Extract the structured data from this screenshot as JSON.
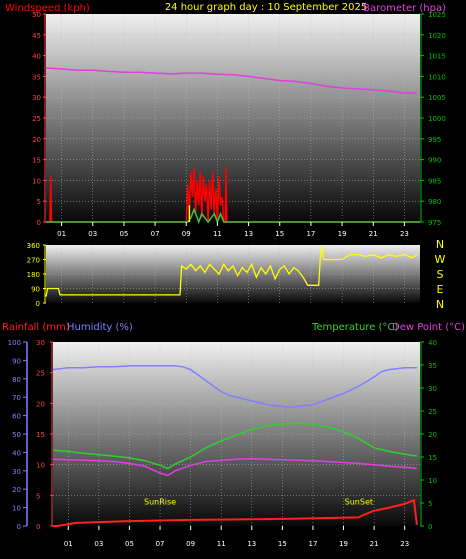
{
  "header": {
    "left_title": "Windspeed (kph)",
    "center_title": "24 hour graph day : 10 September 2025",
    "right_title": "Barometer (hpa)"
  },
  "bottom_header": {
    "rain_label": "Rainfall (mm)",
    "humidity_label": "Humidity (%)",
    "temperature_label": "Temperature (°C)",
    "dewpoint_label": "Dew Point (°C)"
  },
  "colors": {
    "wind": "#ff0000",
    "gust": "#40c040",
    "gust_peak": "#ffff00",
    "barometer": "#e040e0",
    "direction": "#ffff00",
    "rain": "#ff2020",
    "humidity": "#8080ff",
    "temperature": "#30d030",
    "dewpoint": "#e040e0",
    "axis_right_green": "#00c000",
    "compass": "#ffff00"
  },
  "chart_data": [
    {
      "type": "line",
      "title": "24 hour graph day : 10 September 2025",
      "xlabel": "",
      "x_ticks": [
        "01",
        "03",
        "05",
        "07",
        "09",
        "11",
        "13",
        "15",
        "17",
        "19",
        "21",
        "23"
      ],
      "xlim": [
        0,
        24
      ],
      "ylabel": "Windspeed (kph)",
      "ylim": [
        0,
        50
      ],
      "y_ticks": [
        0,
        5,
        10,
        15,
        20,
        25,
        30,
        35,
        40,
        45,
        50
      ],
      "y2label": "Barometer (hpa)",
      "y2lim": [
        975,
        1025
      ],
      "y2_ticks": [
        975,
        980,
        985,
        990,
        995,
        1000,
        1005,
        1010,
        1015,
        1020,
        1025
      ],
      "series": [
        {
          "name": "Barometer (hpa)",
          "axis": "right",
          "x": [
            0,
            1,
            2,
            3,
            4,
            5,
            6,
            7,
            8,
            9,
            10,
            11,
            12,
            13,
            14,
            15,
            16,
            17,
            18,
            19,
            20,
            21,
            22,
            23,
            23.8
          ],
          "y": [
            1012,
            1011.8,
            1011.5,
            1011.5,
            1011.2,
            1011,
            1011,
            1010.8,
            1010.6,
            1010.8,
            1010.8,
            1010.5,
            1010.4,
            1010,
            1009.5,
            1009,
            1008.8,
            1008.3,
            1007.6,
            1007.2,
            1007,
            1006.8,
            1006.5,
            1006,
            1006
          ]
        },
        {
          "name": "Windspeed (kph)",
          "axis": "left",
          "x": [
            0,
            0.25,
            0.3,
            0.35,
            0.4,
            9.0,
            9.1,
            9.2,
            9.3,
            9.4,
            9.5,
            9.6,
            9.7,
            9.8,
            9.9,
            10.0,
            10.1,
            10.2,
            10.3,
            10.4,
            10.5,
            10.6,
            10.7,
            10.8,
            10.9,
            11.0,
            11.1,
            11.2,
            11.3,
            11.4,
            11.5,
            11.55,
            11.6,
            11.7,
            24
          ],
          "y": [
            0,
            0,
            11,
            0,
            0,
            0,
            9,
            3,
            12,
            6,
            13,
            2,
            10,
            4,
            12,
            1,
            11,
            5,
            9,
            0,
            10,
            3,
            12,
            2,
            8,
            0,
            11,
            4,
            6,
            0,
            0,
            13,
            0,
            0,
            0
          ]
        },
        {
          "name": "Gust",
          "axis": "left",
          "x": [
            0,
            9.1,
            9.3,
            9.5,
            9.7,
            9.8,
            10.0,
            10.2,
            10.4,
            10.6,
            10.8,
            11.0,
            11.2,
            11.4,
            11.6,
            24
          ],
          "y": [
            0,
            0,
            1,
            3,
            1,
            0,
            2,
            1,
            0,
            1,
            2,
            0,
            2,
            0,
            0,
            0
          ]
        }
      ]
    },
    {
      "type": "scatter",
      "title": "",
      "x_ticks": [],
      "xlim": [
        0,
        24
      ],
      "y_ticks": [
        0,
        90,
        180,
        270,
        360
      ],
      "ylim": [
        0,
        360
      ],
      "compass_labels": [
        "N",
        "W",
        "S",
        "E",
        "N"
      ],
      "series": [
        {
          "name": "Wind direction",
          "x": [
            0,
            0.1,
            0.8,
            0.9,
            8.6,
            8.7,
            9.0,
            9.3,
            9.6,
            9.9,
            10.2,
            10.5,
            10.8,
            11.1,
            11.4,
            11.7,
            12.0,
            12.3,
            12.6,
            12.9,
            13.2,
            13.5,
            13.8,
            14.1,
            14.4,
            14.7,
            15.0,
            15.3,
            15.6,
            15.9,
            16.2,
            16.5,
            16.8,
            17.1,
            17.4,
            17.5,
            17.6,
            17.7,
            17.8,
            18.0,
            18.5,
            19.0,
            19.5,
            20.0,
            20.5,
            21.0,
            21.5,
            22.0,
            22.5,
            23.0,
            23.5,
            23.8
          ],
          "y": [
            40,
            90,
            90,
            50,
            50,
            230,
            210,
            240,
            200,
            230,
            190,
            240,
            210,
            180,
            240,
            200,
            230,
            170,
            220,
            190,
            240,
            160,
            220,
            180,
            230,
            150,
            210,
            230,
            180,
            220,
            200,
            160,
            110,
            110,
            110,
            110,
            280,
            350,
            270,
            270,
            270,
            270,
            300,
            300,
            290,
            300,
            280,
            300,
            290,
            300,
            280,
            300
          ]
        }
      ]
    },
    {
      "type": "line",
      "title": "",
      "x_ticks": [
        "01",
        "03",
        "05",
        "07",
        "09",
        "11",
        "13",
        "15",
        "17",
        "19",
        "21",
        "23"
      ],
      "xlim": [
        0,
        24
      ],
      "ylabel": "Rainfall (mm)",
      "ylim": [
        0,
        30
      ],
      "y_ticks": [
        0,
        5,
        10,
        15,
        20,
        25,
        30
      ],
      "humidity_ylim": [
        0,
        100
      ],
      "humidity_ticks": [
        0,
        10,
        20,
        30,
        40,
        50,
        60,
        70,
        80,
        90,
        100
      ],
      "y2label": "Temperature (°C)",
      "y2lim": [
        0,
        40
      ],
      "y2_ticks": [
        0,
        5,
        10,
        15,
        20,
        25,
        30,
        35,
        40
      ],
      "annotations": [
        {
          "text": "SunRise",
          "x": 7
        },
        {
          "text": "SunSet",
          "x": 20
        }
      ],
      "series": [
        {
          "name": "Humidity (%)",
          "axis": "humidity",
          "x": [
            0,
            1,
            2,
            3,
            4,
            5,
            6,
            7,
            8,
            8.5,
            9,
            9.5,
            10,
            10.5,
            11,
            11.5,
            12,
            13,
            14,
            15,
            15.5,
            16,
            17,
            18,
            19,
            20,
            21,
            21.5,
            22,
            23,
            23.8
          ],
          "y": [
            85,
            86,
            86,
            86.5,
            86.5,
            87,
            87,
            87,
            87,
            86.5,
            85,
            82,
            79,
            76,
            73,
            71,
            70,
            68,
            66,
            65,
            64.5,
            65,
            66,
            69,
            72,
            76,
            81,
            84,
            85,
            86,
            86
          ]
        },
        {
          "name": "Temperature (°C)",
          "axis": "right",
          "x": [
            0,
            1,
            2,
            3,
            4,
            5,
            6,
            7,
            7.5,
            8,
            9,
            10,
            11,
            12,
            13,
            14,
            15,
            16,
            17,
            18,
            19,
            20,
            21,
            22,
            23,
            23.8
          ],
          "y": [
            16.5,
            16.2,
            15.8,
            15.5,
            15.2,
            14.8,
            14.2,
            13.2,
            12.5,
            13.5,
            15,
            17,
            18.5,
            19.8,
            21,
            21.8,
            22.2,
            22.3,
            22.1,
            21.5,
            20.5,
            19,
            17,
            16.2,
            15.6,
            15.2
          ]
        },
        {
          "name": "Dew Point (°C)",
          "axis": "right",
          "x": [
            0,
            1,
            2,
            3,
            4,
            5,
            6,
            7,
            7.5,
            8,
            9,
            10,
            11,
            12,
            13,
            14,
            15,
            16,
            17,
            18,
            19,
            20,
            21,
            22,
            23,
            23.8
          ],
          "y": [
            14.5,
            14.4,
            14.3,
            14.2,
            14,
            13.6,
            13,
            11.5,
            11,
            12,
            13.2,
            14,
            14.3,
            14.5,
            14.6,
            14.5,
            14.4,
            14.3,
            14.2,
            14,
            13.8,
            13.6,
            13.3,
            13,
            12.8,
            12.5
          ]
        },
        {
          "name": "Rainfall (mm)",
          "axis": "left",
          "x": [
            0,
            0.3,
            1.5,
            5,
            9,
            13,
            16,
            18,
            20,
            20.3,
            21,
            22,
            23,
            23.6,
            23.8
          ],
          "y": [
            0,
            0,
            0.5,
            0.8,
            1,
            1.1,
            1.2,
            1.3,
            1.4,
            1.8,
            2.5,
            3,
            3.6,
            4.2,
            0.2
          ]
        }
      ]
    }
  ]
}
